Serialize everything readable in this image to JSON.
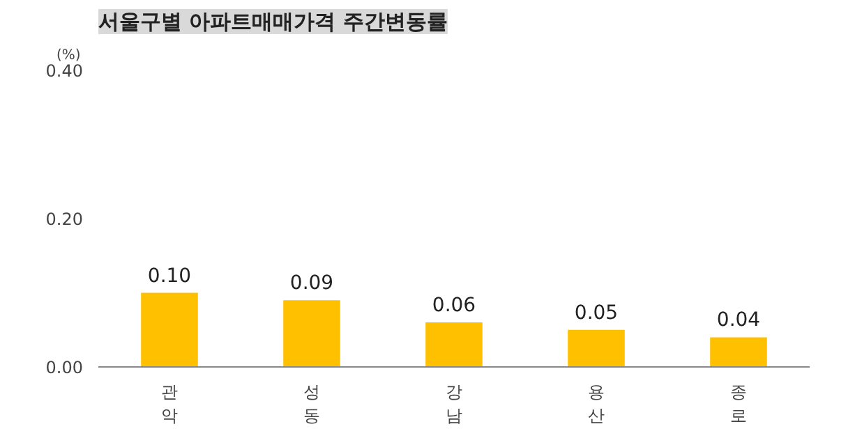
{
  "chart_data": {
    "type": "bar",
    "title": "서울구별 아파트매매가격 주간변동률",
    "ylabel": "(%)",
    "categories": [
      "관악",
      "성동",
      "강남",
      "용산",
      "종로"
    ],
    "values": [
      0.1,
      0.09,
      0.06,
      0.05,
      0.04
    ],
    "value_labels": [
      "0.10",
      "0.09",
      "0.06",
      "0.05",
      "0.04"
    ],
    "color": "#ffc000",
    "ylim": [
      0,
      0.4
    ],
    "yticks": [
      {
        "value": 0,
        "label": "0.00"
      },
      {
        "value": 0.2,
        "label": "0.20"
      },
      {
        "value": 0.4,
        "label": "0.40"
      }
    ],
    "grid": false
  }
}
